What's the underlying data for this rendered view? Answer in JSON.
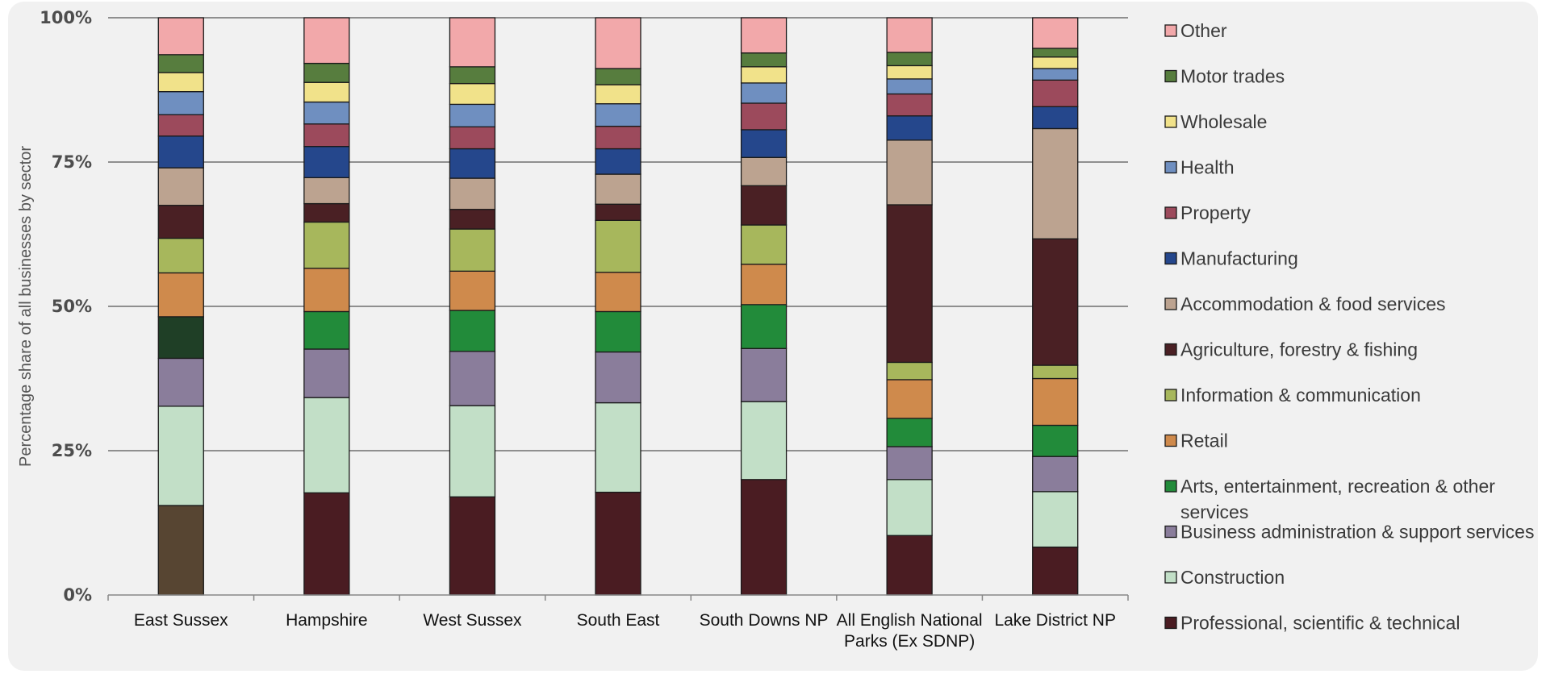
{
  "chart_data": {
    "type": "bar",
    "stacked": true,
    "title": "",
    "ylabel": "Percentage share of all businesses by sector",
    "xlabel": "",
    "ylim": [
      0,
      100
    ],
    "yticks": [
      0,
      25,
      50,
      75,
      100
    ],
    "ytick_labels": [
      "0%",
      "25%",
      "50%",
      "75%",
      "100%"
    ],
    "grid": true,
    "legend_position": "right",
    "categories": [
      "East Sussex",
      "Hampshire",
      "West Sussex",
      "South East",
      "South Downs NP",
      "All English National Parks (Ex SDNP)",
      "Lake District NP"
    ],
    "category_label_lines": [
      [
        "East Sussex"
      ],
      [
        "Hampshire"
      ],
      [
        "West Sussex"
      ],
      [
        "South East"
      ],
      [
        "South Downs NP"
      ],
      [
        "All English National",
        "Parks (Ex SDNP)"
      ],
      [
        "Lake District NP"
      ]
    ],
    "series": [
      {
        "name": "Professional, scientific & technical",
        "color": "#4a1c22",
        "values": [
          15.5,
          17.7,
          17.0,
          17.8,
          20.0,
          10.3,
          8.3
        ]
      },
      {
        "name": "Construction",
        "color": "#c2dfc7",
        "values": [
          17.2,
          16.5,
          15.8,
          15.5,
          13.5,
          9.7,
          9.6
        ]
      },
      {
        "name": "Business administration & support services",
        "color": "#8a7d9b",
        "values": [
          8.3,
          8.4,
          9.4,
          8.8,
          9.2,
          5.7,
          6.1
        ]
      },
      {
        "name": "Arts, entertainment, recreation & other services",
        "color": "#228b3a",
        "values": [
          7.2,
          6.5,
          7.1,
          7.0,
          7.6,
          4.9,
          5.4
        ]
      },
      {
        "name": "Retail",
        "color": "#cf8a4c",
        "values": [
          7.6,
          7.5,
          6.8,
          6.8,
          7.0,
          6.7,
          8.1
        ]
      },
      {
        "name": "Information & communication",
        "color": "#a7b75c",
        "values": [
          6.0,
          8.0,
          7.3,
          9.0,
          6.8,
          3.0,
          2.3
        ]
      },
      {
        "name": "Agriculture, forestry & fishing",
        "color": "#4a2024",
        "values": [
          5.7,
          3.2,
          3.4,
          2.8,
          6.8,
          27.3,
          21.9
        ]
      },
      {
        "name": "Accommodation & food services",
        "color": "#bca390",
        "values": [
          6.5,
          4.5,
          5.4,
          5.2,
          4.9,
          11.2,
          19.1
        ]
      },
      {
        "name": "Manufacturing",
        "color": "#25478c",
        "values": [
          5.5,
          5.4,
          5.1,
          4.4,
          4.8,
          4.2,
          3.8
        ]
      },
      {
        "name": "Property",
        "color": "#9c4a5c",
        "values": [
          3.7,
          3.9,
          3.8,
          3.9,
          4.6,
          3.8,
          4.6
        ]
      },
      {
        "name": "Health",
        "color": "#6f8fc0",
        "values": [
          4.0,
          3.8,
          3.9,
          3.9,
          3.5,
          2.6,
          2.0
        ]
      },
      {
        "name": "Wholesale",
        "color": "#f1e28a",
        "values": [
          3.3,
          3.4,
          3.6,
          3.3,
          2.8,
          2.3,
          2.0
        ]
      },
      {
        "name": "Motor trades",
        "color": "#577d3e",
        "values": [
          3.1,
          3.3,
          2.9,
          2.8,
          2.4,
          2.3,
          1.5
        ]
      },
      {
        "name": "Other",
        "color": "#f2a8aa",
        "values": [
          6.4,
          7.9,
          8.5,
          8.8,
          6.1,
          6.0,
          5.3
        ]
      }
    ],
    "override_colors": {
      "East Sussex": {
        "Professional, scientific & technical": "#574532",
        "Arts, entertainment, recreation & other services": "#1f3f26"
      }
    },
    "legend_order": [
      "Other",
      "Motor trades",
      "Wholesale",
      "Health",
      "Property",
      "Manufacturing",
      "Accommodation & food services",
      "Agriculture, forestry & fishing",
      "Information & communication",
      "Retail",
      "Arts, entertainment, recreation & other services",
      "Business administration & support services",
      "Construction",
      "Professional, scientific & technical"
    ],
    "legend_label_lines": {
      "Arts, entertainment, recreation & other services": [
        "Arts, entertainment, recreation & other",
        "services"
      ]
    }
  }
}
